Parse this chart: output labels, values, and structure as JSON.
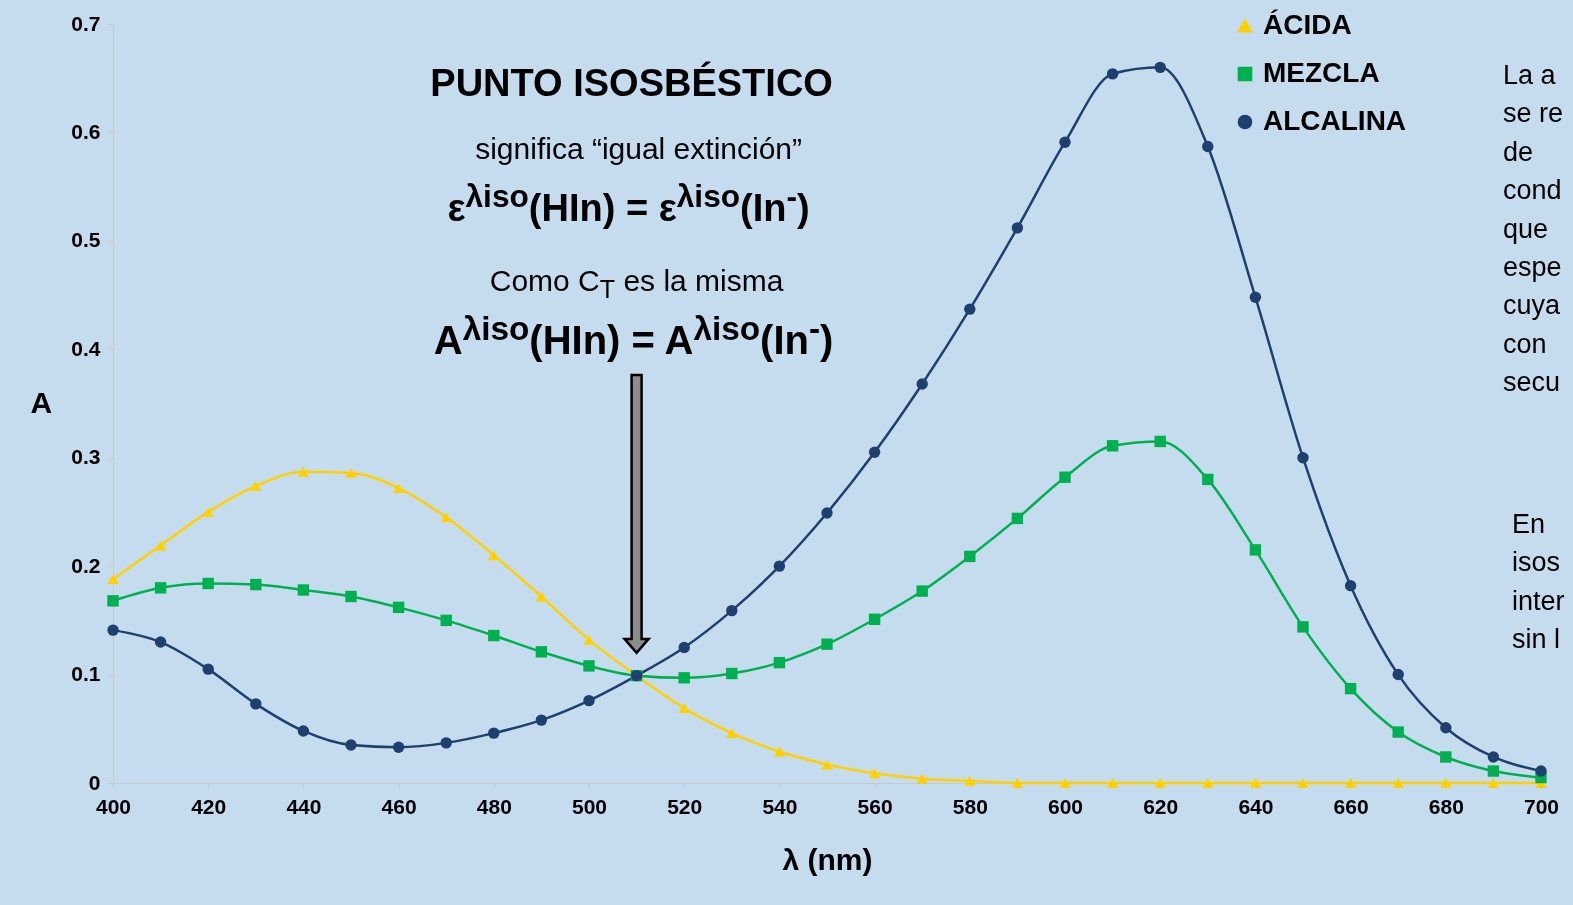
{
  "chart_data": {
    "type": "line",
    "title": "PUNTO ISOSBÉSTICO",
    "xlabel": "λ (nm)",
    "ylabel": "A",
    "x": [
      400,
      410,
      420,
      430,
      440,
      450,
      460,
      470,
      480,
      490,
      500,
      510,
      520,
      530,
      540,
      550,
      560,
      570,
      580,
      590,
      600,
      610,
      620,
      630,
      640,
      650,
      660,
      670,
      680,
      690,
      700
    ],
    "xlim": [
      400,
      700
    ],
    "xticks": [
      400,
      420,
      440,
      460,
      480,
      500,
      520,
      540,
      560,
      580,
      600,
      620,
      640,
      660,
      680,
      700
    ],
    "ylim": [
      0,
      0.7
    ],
    "yticks": [
      0,
      0.1,
      0.2,
      0.3,
      0.4,
      0.5,
      0.6,
      0.7
    ],
    "legend": "top right",
    "series": [
      {
        "name": "ÁCIDA",
        "color": "#ffd000",
        "marker": "triangle",
        "values": [
          0.188,
          0.219,
          0.25,
          0.274,
          0.287,
          0.286,
          0.272,
          0.245,
          0.21,
          0.172,
          0.132,
          0.099,
          0.069,
          0.046,
          0.029,
          0.017,
          0.009,
          0.004,
          0.002,
          0,
          0,
          0,
          0,
          0,
          0,
          0,
          0,
          0,
          0,
          0,
          0
        ]
      },
      {
        "name": "MEZCLA",
        "color": "#00b050",
        "marker": "square",
        "values": [
          0.168,
          0.18,
          0.184,
          0.183,
          0.178,
          0.172,
          0.162,
          0.15,
          0.136,
          0.121,
          0.108,
          0.099,
          0.097,
          0.101,
          0.111,
          0.128,
          0.151,
          0.177,
          0.209,
          0.244,
          0.282,
          0.311,
          0.315,
          0.28,
          0.215,
          0.144,
          0.087,
          0.047,
          0.024,
          0.011,
          0.005
        ]
      },
      {
        "name": "ALCALINA",
        "color": "#1f3f6e",
        "marker": "circle",
        "values": [
          0.141,
          0.13,
          0.105,
          0.073,
          0.048,
          0.035,
          0.033,
          0.037,
          0.046,
          0.058,
          0.076,
          0.099,
          0.125,
          0.159,
          0.2,
          0.249,
          0.305,
          0.368,
          0.437,
          0.512,
          0.591,
          0.654,
          0.66,
          0.587,
          0.448,
          0.3,
          0.182,
          0.1,
          0.051,
          0.024,
          0.011
        ]
      }
    ],
    "annotations": [
      "significa “igual extinción”",
      "ε$^{λiso}$(HIn) = ε$^{λiso}$(In$^{-}$)",
      "Como C$_{T}$ es la misma",
      "A$^{λiso}$(HIn) = A$^{λiso}$(In$^{-}$)",
      "La a\nse re\nde\ncond\nque\nespe\ncuya\ncon\nsecu",
      "En\nisos\ninter\nsin l"
    ]
  }
}
